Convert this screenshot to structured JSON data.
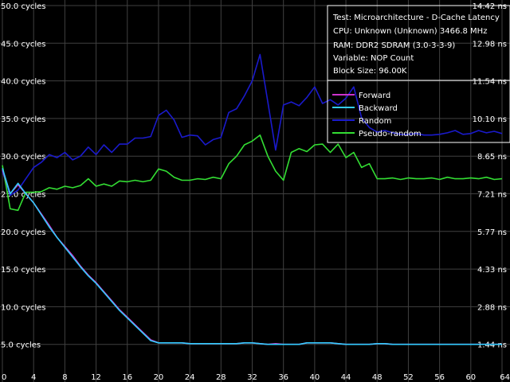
{
  "chart_data": {
    "type": "line",
    "info": [
      "Test: Microarchitecture - D-Cache Latency",
      "CPU: Unknown (Unknown) 3466.8 MHz",
      "RAM: DDR2 SDRAM (3.0-3-3-9)",
      "Variable: NOP Count",
      "Block Size: 96.00K"
    ],
    "xlim": [
      0,
      64
    ],
    "ylim": [
      0,
      50
    ],
    "x_ticks": [
      "0",
      "4",
      "8",
      "12",
      "16",
      "20",
      "24",
      "28",
      "32",
      "36",
      "40",
      "44",
      "48",
      "52",
      "56",
      "60",
      "64"
    ],
    "y_ticks_left": [
      {
        "v": 5,
        "label": "5.0 cycles"
      },
      {
        "v": 10,
        "label": "10.0 cycles"
      },
      {
        "v": 15,
        "label": "15.0 cycles"
      },
      {
        "v": 20,
        "label": "20.0 cycles"
      },
      {
        "v": 25,
        "label": "25.0 cycles"
      },
      {
        "v": 30,
        "label": "30.0 cycles"
      },
      {
        "v": 35,
        "label": "35.0 cycles"
      },
      {
        "v": 40,
        "label": "40.0 cycles"
      },
      {
        "v": 45,
        "label": "45.0 cycles"
      },
      {
        "v": 50,
        "label": "50.0 cycles"
      }
    ],
    "y_ticks_right": [
      {
        "v": 5,
        "label": "1.44 ns"
      },
      {
        "v": 10,
        "label": "2.88 ns"
      },
      {
        "v": 15,
        "label": "4.33 ns"
      },
      {
        "v": 20,
        "label": "5.77 ns"
      },
      {
        "v": 25,
        "label": "7.21 ns"
      },
      {
        "v": 30,
        "label": "8.65 ns"
      },
      {
        "v": 35,
        "label": "10.10 ns"
      },
      {
        "v": 40,
        "label": "11.54 ns"
      },
      {
        "v": 45,
        "label": "12.98 ns"
      },
      {
        "v": 50,
        "label": "14.42 ns"
      }
    ],
    "grid": true,
    "legend_position": "top-right",
    "series": [
      {
        "name": "Forward",
        "color": "#cc33cc",
        "x": [
          0,
          1,
          2,
          3,
          4,
          5,
          6,
          7,
          8,
          9,
          10,
          11,
          12,
          13,
          14,
          15,
          16,
          17,
          18,
          19,
          20,
          21,
          22,
          23,
          24,
          25,
          26,
          27,
          28,
          29,
          30,
          31,
          32,
          33,
          34,
          35,
          36,
          37,
          38,
          39,
          40,
          41,
          42,
          43,
          44,
          45,
          46,
          47,
          48,
          49,
          50,
          51,
          52,
          53,
          54,
          55,
          56,
          57,
          58,
          59,
          60,
          61,
          62,
          63,
          64
        ],
        "y": [
          28.2,
          25.0,
          26.2,
          25.0,
          23.8,
          22.3,
          20.8,
          19.2,
          18.0,
          16.8,
          15.4,
          14.2,
          13.2,
          12.0,
          10.8,
          9.6,
          8.6,
          7.6,
          6.6,
          5.6,
          5.2,
          5.2,
          5.2,
          5.2,
          5.1,
          5.1,
          5.1,
          5.1,
          5.1,
          5.1,
          5.1,
          5.2,
          5.2,
          5.1,
          5.0,
          5.1,
          5.0,
          5.0,
          5.0,
          5.2,
          5.2,
          5.2,
          5.2,
          5.1,
          5.0,
          5.0,
          5.0,
          5.0,
          5.1,
          5.1,
          5.0,
          5.0,
          5.0,
          5.0,
          5.0,
          5.0,
          5.0,
          5.0,
          5.0,
          5.0,
          5.0,
          5.0,
          5.0,
          5.0,
          5.0
        ]
      },
      {
        "name": "Backward",
        "color": "#33ccff",
        "x": [
          0,
          1,
          2,
          3,
          4,
          5,
          6,
          7,
          8,
          9,
          10,
          11,
          12,
          13,
          14,
          15,
          16,
          17,
          18,
          19,
          20,
          21,
          22,
          23,
          24,
          25,
          26,
          27,
          28,
          29,
          30,
          31,
          32,
          33,
          34,
          35,
          36,
          37,
          38,
          39,
          40,
          41,
          42,
          43,
          44,
          45,
          46,
          47,
          48,
          49,
          50,
          51,
          52,
          53,
          54,
          55,
          56,
          57,
          58,
          59,
          60,
          61,
          62,
          63,
          64
        ],
        "y": [
          28.4,
          25.0,
          26.4,
          25.0,
          23.8,
          22.2,
          20.6,
          19.2,
          17.9,
          16.6,
          15.3,
          14.1,
          13.1,
          11.9,
          10.7,
          9.5,
          8.5,
          7.5,
          6.5,
          5.5,
          5.2,
          5.2,
          5.2,
          5.2,
          5.1,
          5.1,
          5.1,
          5.1,
          5.1,
          5.1,
          5.1,
          5.2,
          5.2,
          5.1,
          5.0,
          5.0,
          5.0,
          5.0,
          5.0,
          5.2,
          5.2,
          5.2,
          5.2,
          5.1,
          5.0,
          5.0,
          5.0,
          5.0,
          5.1,
          5.1,
          5.0,
          5.0,
          5.0,
          5.0,
          5.0,
          5.0,
          5.0,
          5.0,
          5.0,
          5.0,
          5.0,
          5.0,
          5.0,
          5.0,
          5.0
        ]
      },
      {
        "name": "Random",
        "color": "#1a1acc",
        "x": [
          0,
          1,
          2,
          3,
          4,
          5,
          6,
          7,
          8,
          9,
          10,
          11,
          12,
          13,
          14,
          15,
          16,
          17,
          18,
          19,
          20,
          21,
          22,
          23,
          24,
          25,
          26,
          27,
          28,
          29,
          30,
          31,
          32,
          33,
          34,
          35,
          36,
          37,
          38,
          39,
          40,
          41,
          42,
          43,
          44,
          45,
          46,
          47,
          48,
          49,
          50,
          51,
          52,
          53,
          54,
          55,
          56,
          57,
          58,
          59,
          60,
          61,
          62,
          63,
          64
        ],
        "y": [
          28.0,
          24.8,
          25.5,
          27.0,
          28.5,
          29.2,
          30.2,
          29.8,
          30.5,
          29.5,
          30.0,
          31.2,
          30.2,
          31.5,
          30.5,
          31.6,
          31.6,
          32.4,
          32.4,
          32.6,
          35.4,
          36.1,
          34.8,
          32.5,
          32.8,
          32.7,
          31.5,
          32.2,
          32.5,
          35.8,
          36.3,
          38.0,
          40.0,
          43.5,
          37.2,
          30.8,
          36.8,
          37.2,
          36.7,
          37.8,
          39.2,
          37.0,
          37.5,
          36.8,
          37.7,
          39.2,
          35.1,
          33.8,
          33.2,
          33.4,
          33.1,
          32.9,
          32.9,
          33.0,
          32.8,
          32.8,
          32.9,
          33.1,
          33.4,
          32.9,
          33.0,
          33.4,
          33.1,
          33.3,
          33.0
        ]
      },
      {
        "name": "Pseudo-random",
        "color": "#33dd33",
        "x": [
          0,
          1,
          2,
          3,
          4,
          5,
          6,
          7,
          8,
          9,
          10,
          11,
          12,
          13,
          14,
          15,
          16,
          17,
          18,
          19,
          20,
          21,
          22,
          23,
          24,
          25,
          26,
          27,
          28,
          29,
          30,
          31,
          32,
          33,
          34,
          35,
          36,
          37,
          38,
          39,
          40,
          41,
          42,
          43,
          44,
          45,
          46,
          47,
          48,
          49,
          50,
          51,
          52,
          53,
          54,
          55,
          56,
          57,
          58,
          59,
          60,
          61,
          62,
          63,
          64
        ],
        "y": [
          28.8,
          23.0,
          22.8,
          25.2,
          25.2,
          25.3,
          25.8,
          25.6,
          26.0,
          25.8,
          26.1,
          27.0,
          26.0,
          26.3,
          26.0,
          26.7,
          26.6,
          26.8,
          26.6,
          26.8,
          28.3,
          28.0,
          27.2,
          26.8,
          26.8,
          27.0,
          26.9,
          27.2,
          27.0,
          29.0,
          30.0,
          31.5,
          32.0,
          32.8,
          30.0,
          28.0,
          26.8,
          30.5,
          31.0,
          30.6,
          31.5,
          31.6,
          30.5,
          31.6,
          29.8,
          30.5,
          28.5,
          29.0,
          27.0,
          27.0,
          27.1,
          26.9,
          27.1,
          27.0,
          27.0,
          27.1,
          26.9,
          27.2,
          27.0,
          27.0,
          27.1,
          27.0,
          27.2,
          26.9,
          27.0
        ]
      }
    ]
  }
}
